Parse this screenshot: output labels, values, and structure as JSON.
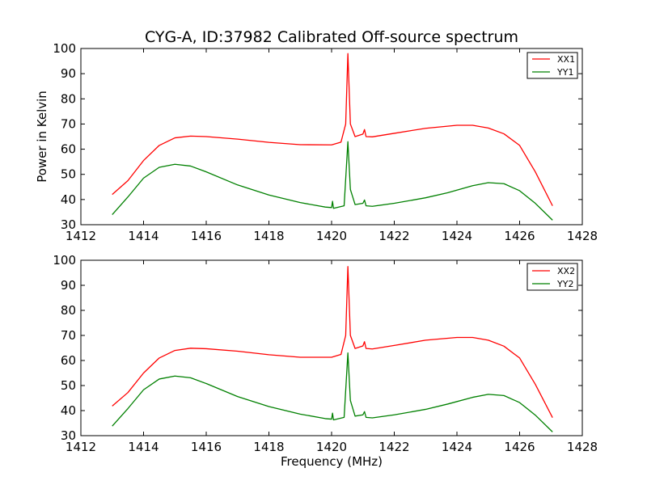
{
  "figure": {
    "title": "CYG-A, ID:37982 Calibrated Off-source spectrum",
    "xlabel": "Frequency (MHz)"
  },
  "chart_data": [
    {
      "type": "line",
      "title": "CYG-A, ID:37982 Calibrated Off-source spectrum",
      "xlabel": "",
      "ylabel": "Power in Kelvin",
      "xlim": [
        1412,
        1428
      ],
      "ylim": [
        30,
        100
      ],
      "xticks": [
        "1412",
        "1414",
        "1416",
        "1418",
        "1420",
        "1422",
        "1424",
        "1426",
        "1428"
      ],
      "yticks": [
        "30",
        "40",
        "50",
        "60",
        "70",
        "80",
        "90",
        "100"
      ],
      "grid": false,
      "legend": "top-right",
      "series": [
        {
          "name": "XX1",
          "color": "#ff0000",
          "points": [
            [
              1413.0,
              42
            ],
            [
              1413.5,
              47.5
            ],
            [
              1414.0,
              55.5
            ],
            [
              1414.5,
              61.5
            ],
            [
              1415.0,
              64.5
            ],
            [
              1415.5,
              65.2
            ],
            [
              1416.0,
              65.0
            ],
            [
              1417.0,
              64.0
            ],
            [
              1418.0,
              62.7
            ],
            [
              1419.0,
              61.8
            ],
            [
              1420.0,
              61.7
            ],
            [
              1420.3,
              62.8
            ],
            [
              1420.45,
              70
            ],
            [
              1420.52,
              98
            ],
            [
              1420.6,
              70
            ],
            [
              1420.75,
              65
            ],
            [
              1421.0,
              66
            ],
            [
              1421.05,
              67.8
            ],
            [
              1421.1,
              65
            ],
            [
              1421.3,
              64.9
            ],
            [
              1422.0,
              66.3
            ],
            [
              1423.0,
              68.3
            ],
            [
              1424.0,
              69.5
            ],
            [
              1424.5,
              69.5
            ],
            [
              1425.0,
              68.4
            ],
            [
              1425.5,
              66.1
            ],
            [
              1426.0,
              61.5
            ],
            [
              1426.5,
              51
            ],
            [
              1427.05,
              37.5
            ]
          ]
        },
        {
          "name": "YY1",
          "color": "#008000",
          "points": [
            [
              1413.0,
              34
            ],
            [
              1413.5,
              41
            ],
            [
              1414.0,
              48.5
            ],
            [
              1414.5,
              52.8
            ],
            [
              1415.0,
              54.0
            ],
            [
              1415.5,
              53.3
            ],
            [
              1416.0,
              51.0
            ],
            [
              1417.0,
              45.8
            ],
            [
              1418.0,
              41.8
            ],
            [
              1419.0,
              38.8
            ],
            [
              1419.8,
              37.0
            ],
            [
              1420.0,
              36.8
            ],
            [
              1420.03,
              39.3
            ],
            [
              1420.06,
              36.5
            ],
            [
              1420.4,
              37.5
            ],
            [
              1420.52,
              63
            ],
            [
              1420.6,
              44
            ],
            [
              1420.75,
              38
            ],
            [
              1421.0,
              38.5
            ],
            [
              1421.05,
              39.8
            ],
            [
              1421.1,
              37.5
            ],
            [
              1421.3,
              37.3
            ],
            [
              1422.0,
              38.5
            ],
            [
              1423.0,
              40.7
            ],
            [
              1423.7,
              42.7
            ],
            [
              1424.5,
              45.5
            ],
            [
              1425.0,
              46.7
            ],
            [
              1425.5,
              46.3
            ],
            [
              1426.0,
              43.5
            ],
            [
              1426.5,
              38.5
            ],
            [
              1427.05,
              31.8
            ]
          ]
        }
      ]
    },
    {
      "type": "line",
      "title": "",
      "xlabel": "Frequency (MHz)",
      "ylabel": "",
      "xlim": [
        1412,
        1428
      ],
      "ylim": [
        30,
        100
      ],
      "xticks": [
        "1412",
        "1414",
        "1416",
        "1418",
        "1420",
        "1422",
        "1424",
        "1426",
        "1428"
      ],
      "yticks": [
        "30",
        "40",
        "50",
        "60",
        "70",
        "80",
        "90",
        "100"
      ],
      "grid": false,
      "legend": "top-right",
      "series": [
        {
          "name": "XX2",
          "color": "#ff0000",
          "points": [
            [
              1413.0,
              41.8
            ],
            [
              1413.5,
              47.2
            ],
            [
              1414.0,
              55.0
            ],
            [
              1414.5,
              61.0
            ],
            [
              1415.0,
              64.0
            ],
            [
              1415.5,
              64.9
            ],
            [
              1416.0,
              64.7
            ],
            [
              1417.0,
              63.7
            ],
            [
              1418.0,
              62.3
            ],
            [
              1419.0,
              61.3
            ],
            [
              1420.0,
              61.3
            ],
            [
              1420.3,
              62.4
            ],
            [
              1420.45,
              70
            ],
            [
              1420.52,
              97.5
            ],
            [
              1420.6,
              70
            ],
            [
              1420.75,
              64.8
            ],
            [
              1421.0,
              65.8
            ],
            [
              1421.05,
              67.5
            ],
            [
              1421.1,
              64.8
            ],
            [
              1421.3,
              64.6
            ],
            [
              1422.0,
              66.0
            ],
            [
              1423.0,
              68.1
            ],
            [
              1424.0,
              69.2
            ],
            [
              1424.5,
              69.2
            ],
            [
              1425.0,
              68.1
            ],
            [
              1425.5,
              65.7
            ],
            [
              1426.0,
              61.0
            ],
            [
              1426.5,
              50.5
            ],
            [
              1427.05,
              37.2
            ]
          ]
        },
        {
          "name": "YY2",
          "color": "#008000",
          "points": [
            [
              1413.0,
              33.8
            ],
            [
              1413.5,
              40.8
            ],
            [
              1414.0,
              48.3
            ],
            [
              1414.5,
              52.6
            ],
            [
              1415.0,
              53.8
            ],
            [
              1415.5,
              53.1
            ],
            [
              1416.0,
              50.8
            ],
            [
              1417.0,
              45.6
            ],
            [
              1418.0,
              41.6
            ],
            [
              1419.0,
              38.6
            ],
            [
              1419.8,
              36.8
            ],
            [
              1420.0,
              36.6
            ],
            [
              1420.03,
              39.0
            ],
            [
              1420.06,
              36.3
            ],
            [
              1420.4,
              37.3
            ],
            [
              1420.52,
              63
            ],
            [
              1420.6,
              44
            ],
            [
              1420.75,
              37.8
            ],
            [
              1421.0,
              38.3
            ],
            [
              1421.05,
              39.6
            ],
            [
              1421.1,
              37.3
            ],
            [
              1421.3,
              37.1
            ],
            [
              1422.0,
              38.3
            ],
            [
              1423.0,
              40.5
            ],
            [
              1423.7,
              42.6
            ],
            [
              1424.5,
              45.3
            ],
            [
              1425.0,
              46.5
            ],
            [
              1425.5,
              46.0
            ],
            [
              1426.0,
              43.2
            ],
            [
              1426.5,
              38.2
            ],
            [
              1427.05,
              31.5
            ]
          ]
        }
      ]
    }
  ]
}
